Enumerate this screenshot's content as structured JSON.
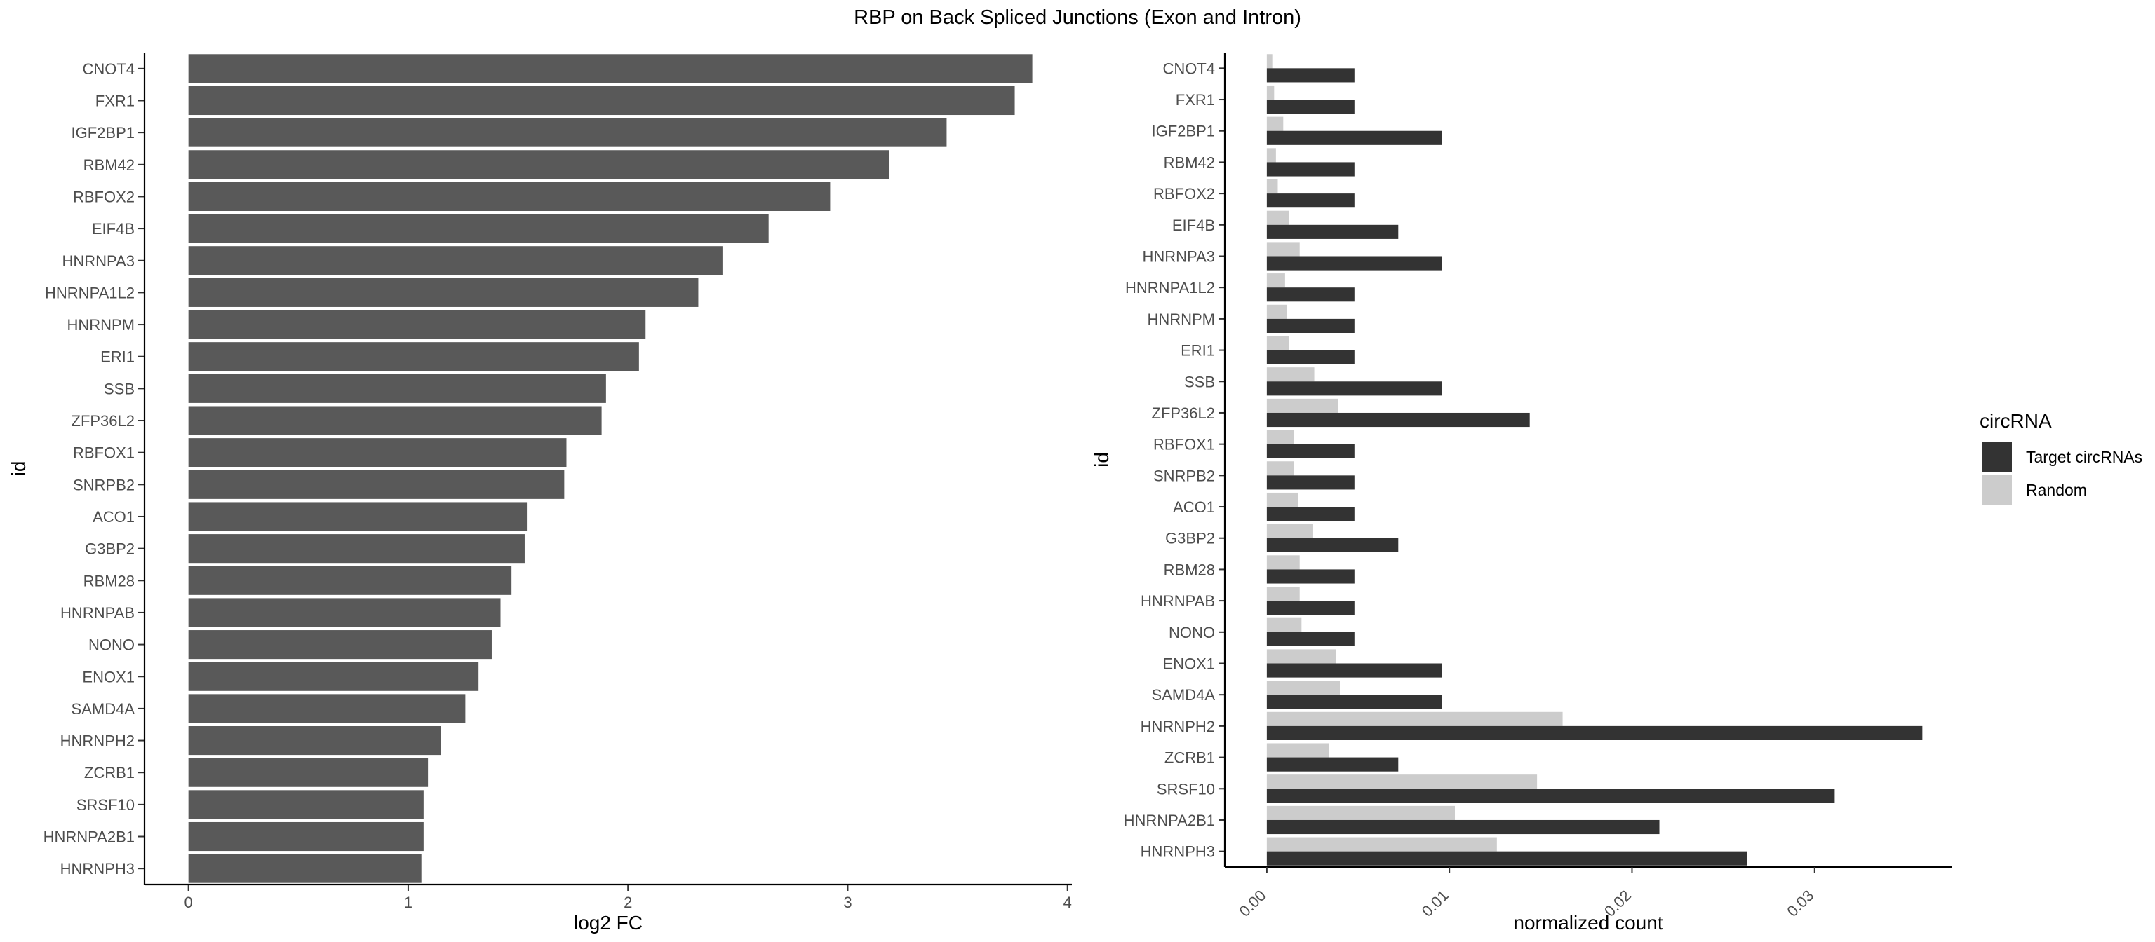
{
  "title": "RBP on Back Spliced Junctions (Exon and Intron)",
  "colors": {
    "bar": "#595959",
    "target": "#333333",
    "random": "#cccccc",
    "axis": "#000000",
    "tick_text": "#4d4d4d"
  },
  "chart_data": [
    {
      "type": "bar",
      "orientation": "horizontal",
      "xlabel": "log2 FC",
      "ylabel": "id",
      "xlim": [
        -0.2,
        4.02
      ],
      "xticks": [
        0,
        1,
        2,
        3,
        4
      ],
      "grid": false,
      "categories": [
        "CNOT4",
        "FXR1",
        "IGF2BP1",
        "RBM42",
        "RBFOX2",
        "EIF4B",
        "HNRNPA3",
        "HNRNPA1L2",
        "HNRNPM",
        "ERI1",
        "SSB",
        "ZFP36L2",
        "RBFOX1",
        "SNRPB2",
        "ACO1",
        "G3BP2",
        "RBM28",
        "HNRNPAB",
        "NONO",
        "ENOX1",
        "SAMD4A",
        "HNRNPH2",
        "ZCRB1",
        "SRSF10",
        "HNRNPA2B1",
        "HNRNPH3"
      ],
      "values": [
        3.84,
        3.76,
        3.45,
        3.19,
        2.92,
        2.64,
        2.43,
        2.32,
        2.08,
        2.05,
        1.9,
        1.88,
        1.72,
        1.71,
        1.54,
        1.53,
        1.47,
        1.42,
        1.38,
        1.32,
        1.26,
        1.15,
        1.09,
        1.07,
        1.07,
        1.06
      ]
    },
    {
      "type": "bar",
      "orientation": "horizontal",
      "xlabel": "normalized count",
      "ylabel": "id",
      "xlim": [
        -0.0023,
        0.0375
      ],
      "xticks": [
        0.0,
        0.01,
        0.02,
        0.03
      ],
      "xtick_labels": [
        "0.00",
        "0.01",
        "0.02",
        "0.03"
      ],
      "grid": false,
      "legend": {
        "title": "circRNA",
        "position": "right"
      },
      "categories": [
        "CNOT4",
        "FXR1",
        "IGF2BP1",
        "RBM42",
        "RBFOX2",
        "EIF4B",
        "HNRNPA3",
        "HNRNPA1L2",
        "HNRNPM",
        "ERI1",
        "SSB",
        "ZFP36L2",
        "RBFOX1",
        "SNRPB2",
        "ACO1",
        "G3BP2",
        "RBM28",
        "HNRNPAB",
        "NONO",
        "ENOX1",
        "SAMD4A",
        "HNRNPH2",
        "ZCRB1",
        "SRSF10",
        "HNRNPA2B1",
        "HNRNPH3"
      ],
      "series": [
        {
          "name": "Target circRNAs",
          "values": [
            0.0048,
            0.0048,
            0.0096,
            0.0048,
            0.0048,
            0.0072,
            0.0096,
            0.0048,
            0.0048,
            0.0048,
            0.0096,
            0.0144,
            0.0048,
            0.0048,
            0.0048,
            0.0072,
            0.0048,
            0.0048,
            0.0048,
            0.0096,
            0.0096,
            0.0359,
            0.0072,
            0.0311,
            0.0215,
            0.0263
          ]
        },
        {
          "name": "Random",
          "values": [
            0.0003,
            0.0004,
            0.0009,
            0.0005,
            0.0006,
            0.0012,
            0.0018,
            0.001,
            0.0011,
            0.0012,
            0.0026,
            0.0039,
            0.0015,
            0.0015,
            0.0017,
            0.0025,
            0.0018,
            0.0018,
            0.0019,
            0.0038,
            0.004,
            0.0162,
            0.0034,
            0.0148,
            0.0103,
            0.0126
          ]
        }
      ]
    }
  ]
}
